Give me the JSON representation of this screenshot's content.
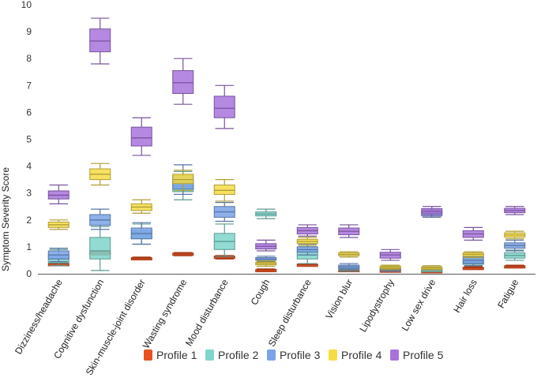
{
  "chart_data": {
    "type": "boxplot",
    "title": "",
    "xlabel": "",
    "ylabel": "Symptom Severity Score",
    "ylim": [
      0,
      10
    ],
    "yticks": [
      "0",
      "1",
      "2",
      "3",
      "4",
      "5",
      "6",
      "7",
      "8",
      "9",
      "10"
    ],
    "grid": false,
    "legend_position": "bottom",
    "categories": [
      "Dizziness/headache",
      "Cognitive dysfunction",
      "Skin-muscle-joint disorder",
      "Wasting syndrome",
      "Mood disturbance",
      "Cough",
      "Sleep disturbance",
      "Vision blur",
      "Lipodystrophy",
      "Low sex drive",
      "Hair loss",
      "Fatigue"
    ],
    "series": [
      {
        "name": "Profile 1",
        "color": "#e8501e",
        "boxes": [
          [
            0.3,
            0.33,
            0.36,
            0.38,
            0.42
          ],
          [
            0.7,
            0.72,
            0.78,
            0.82,
            0.85
          ],
          [
            0.52,
            0.54,
            0.57,
            0.6,
            0.62
          ],
          [
            0.67,
            0.69,
            0.73,
            0.77,
            0.79
          ],
          [
            0.55,
            0.58,
            0.62,
            0.66,
            0.68
          ],
          [
            0.1,
            0.12,
            0.14,
            0.16,
            0.18
          ],
          [
            0.28,
            0.3,
            0.33,
            0.36,
            0.38
          ],
          [
            0.1,
            0.12,
            0.14,
            0.16,
            0.18
          ],
          [
            0.08,
            0.1,
            0.12,
            0.14,
            0.16
          ],
          [
            0.06,
            0.08,
            0.1,
            0.12,
            0.14
          ],
          [
            0.18,
            0.2,
            0.22,
            0.24,
            0.26
          ],
          [
            0.22,
            0.24,
            0.27,
            0.3,
            0.32
          ]
        ]
      },
      {
        "name": "Profile 2",
        "color": "#7fd5cb",
        "boxes": [
          [
            0.3,
            0.4,
            0.55,
            0.7,
            0.9
          ],
          [
            0.12,
            0.55,
            0.85,
            1.35,
            1.75
          ],
          [
            1.1,
            1.3,
            1.45,
            1.6,
            1.85
          ],
          [
            2.75,
            3.05,
            3.25,
            3.45,
            3.8
          ],
          [
            0.65,
            0.9,
            1.2,
            1.5,
            1.85
          ],
          [
            2.05,
            2.15,
            2.22,
            2.3,
            2.4
          ],
          [
            0.38,
            0.55,
            0.7,
            0.85,
            1.0
          ],
          [
            0.1,
            0.15,
            0.2,
            0.25,
            0.32
          ],
          [
            0.1,
            0.13,
            0.17,
            0.21,
            0.25
          ],
          [
            0.08,
            0.11,
            0.14,
            0.17,
            0.2
          ],
          [
            0.3,
            0.35,
            0.42,
            0.48,
            0.55
          ],
          [
            0.5,
            0.58,
            0.68,
            0.78,
            0.88
          ]
        ]
      },
      {
        "name": "Profile 3",
        "color": "#7aa3e8",
        "boxes": [
          [
            0.45,
            0.55,
            0.7,
            0.85,
            0.95
          ],
          [
            1.65,
            1.8,
            2.0,
            2.2,
            2.4
          ],
          [
            1.1,
            1.3,
            1.5,
            1.7,
            1.9
          ],
          [
            2.95,
            3.15,
            3.4,
            3.65,
            4.05
          ],
          [
            1.95,
            2.1,
            2.3,
            2.5,
            2.65
          ],
          [
            0.45,
            0.5,
            0.55,
            0.6,
            0.65
          ],
          [
            0.7,
            0.8,
            0.9,
            1.0,
            1.1
          ],
          [
            0.15,
            0.2,
            0.26,
            0.32,
            0.38
          ],
          [
            0.1,
            0.14,
            0.18,
            0.22,
            0.26
          ],
          [
            2.1,
            2.15,
            2.22,
            2.3,
            2.38
          ],
          [
            0.3,
            0.38,
            0.5,
            0.62,
            0.72
          ],
          [
            0.85,
            0.95,
            1.05,
            1.15,
            1.25
          ]
        ]
      },
      {
        "name": "Profile 4",
        "color": "#f5dc45",
        "boxes": [
          [
            1.65,
            1.72,
            1.82,
            1.92,
            2.0
          ],
          [
            3.3,
            3.5,
            3.7,
            3.9,
            4.1
          ],
          [
            2.25,
            2.35,
            2.48,
            2.6,
            2.75
          ],
          [
            3.1,
            3.35,
            3.5,
            3.7,
            3.85
          ],
          [
            2.7,
            2.95,
            3.1,
            3.3,
            3.5
          ],
          [
            0.28,
            0.33,
            0.38,
            0.43,
            0.48
          ],
          [
            1.05,
            1.12,
            1.2,
            1.28,
            1.35
          ],
          [
            0.62,
            0.67,
            0.72,
            0.78,
            0.82
          ],
          [
            0.15,
            0.19,
            0.24,
            0.29,
            0.32
          ],
          [
            0.15,
            0.18,
            0.22,
            0.26,
            0.3
          ],
          [
            0.6,
            0.65,
            0.72,
            0.78,
            0.82
          ],
          [
            1.3,
            1.36,
            1.44,
            1.52,
            1.58
          ]
        ]
      },
      {
        "name": "Profile 5",
        "color": "#a873dc",
        "boxes": [
          [
            2.6,
            2.78,
            2.92,
            3.08,
            3.3
          ],
          [
            7.8,
            8.25,
            8.65,
            9.1,
            9.5
          ],
          [
            4.4,
            4.75,
            5.05,
            5.45,
            5.8
          ],
          [
            6.3,
            6.7,
            7.1,
            7.55,
            8.0
          ],
          [
            5.4,
            5.8,
            6.15,
            6.6,
            7.0
          ],
          [
            0.85,
            0.92,
            1.02,
            1.12,
            1.25
          ],
          [
            1.4,
            1.48,
            1.6,
            1.72,
            1.82
          ],
          [
            1.35,
            1.45,
            1.58,
            1.7,
            1.82
          ],
          [
            0.5,
            0.58,
            0.7,
            0.8,
            0.9
          ],
          [
            2.15,
            2.22,
            2.32,
            2.42,
            2.5
          ],
          [
            1.25,
            1.35,
            1.48,
            1.6,
            1.72
          ],
          [
            2.2,
            2.27,
            2.35,
            2.43,
            2.5
          ]
        ]
      }
    ]
  }
}
